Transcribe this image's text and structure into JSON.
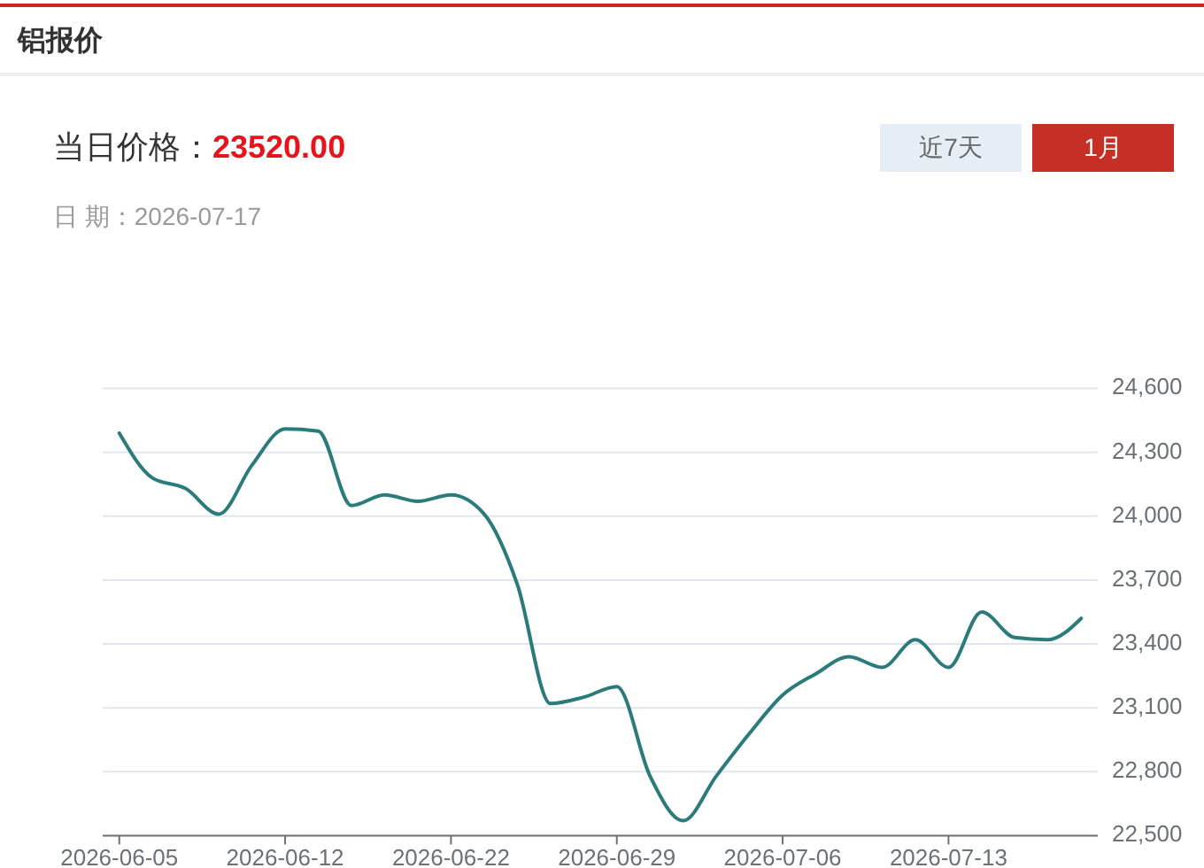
{
  "chart_data": {
    "type": "line",
    "title": "铝报价",
    "subtitle": "当日价格：**23520.00**",
    "annotations": [
      "日 期：2026-07-17",
      "近7天",
      "1月"
    ],
    "categories": [
      "2026-06-05",
      null,
      null,
      null,
      null,
      "2026-06-12",
      null,
      null,
      null,
      null,
      "2026-06-22",
      null,
      null,
      null,
      null,
      "2026-06-29",
      null,
      null,
      null,
      null,
      "2026-07-06",
      null,
      null,
      null,
      null,
      "2026-07-13",
      null,
      null,
      null,
      null
    ],
    "values": [
      24390,
      24180,
      24130,
      24010,
      24240,
      24410,
      24400,
      24050,
      24100,
      24070,
      24100,
      24010,
      23680,
      23120,
      23150,
      23200,
      22780,
      22570,
      22780,
      22980,
      23160,
      23260,
      23340,
      23290,
      23420,
      23290,
      23550,
      23430,
      23420,
      23520
    ],
    "color": "#2b7b7c",
    "ylim": [
      22500,
      24600
    ],
    "yticks": [
      {
        "value": 22500,
        "label": "22,500"
      },
      {
        "value": 22800,
        "label": "22,800"
      },
      {
        "value": 23100,
        "label": "23,100"
      },
      {
        "value": 23400,
        "label": "23,400"
      },
      {
        "value": 23700,
        "label": "23,700"
      },
      {
        "value": 24000,
        "label": "24,000"
      },
      {
        "value": 24300,
        "label": "24,300"
      },
      {
        "value": 24600,
        "label": "24,600"
      }
    ],
    "grid": "y"
  }
}
